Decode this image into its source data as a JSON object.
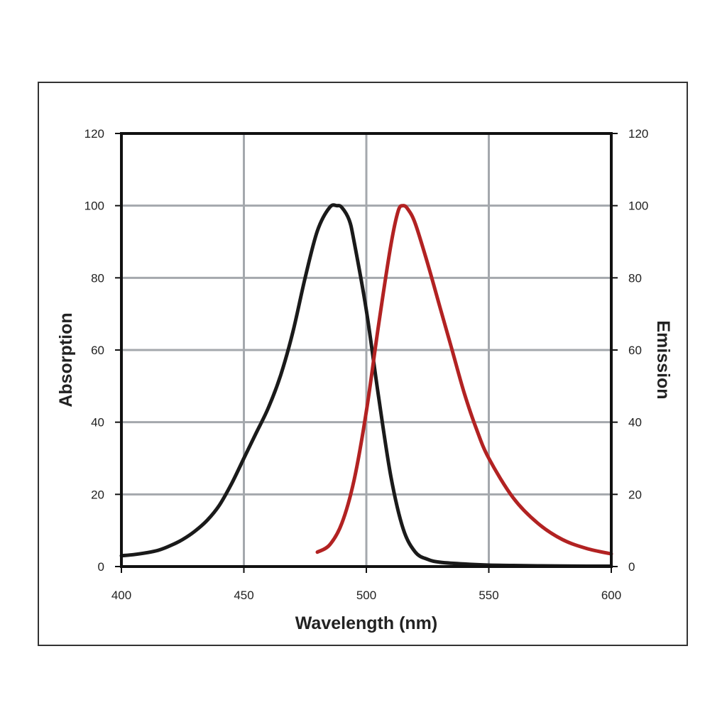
{
  "chart_data": {
    "type": "line",
    "xlabel": "Wavelength (nm)",
    "ylabel": "Absorption",
    "y2label": "Emission",
    "xlim": [
      400,
      600
    ],
    "ylim": [
      0,
      120
    ],
    "y2lim": [
      0,
      120
    ],
    "xticks": [
      400,
      450,
      500,
      550,
      600
    ],
    "yticks": [
      0,
      20,
      40,
      60,
      80,
      100,
      120
    ],
    "y2ticks": [
      0,
      20,
      40,
      60,
      80,
      100,
      120
    ],
    "grid": true,
    "series": [
      {
        "key": "absorption",
        "axis": "left",
        "color": "#1a1a1a",
        "x": [
          400,
          405,
          410,
          415,
          420,
          425,
          430,
          435,
          440,
          445,
          450,
          455,
          460,
          465,
          470,
          475,
          480,
          485,
          488,
          490,
          493,
          495,
          500,
          505,
          510,
          515,
          520,
          525,
          530,
          540,
          550,
          560,
          570,
          580,
          590,
          600
        ],
        "y": [
          3,
          3.3,
          3.8,
          4.5,
          5.8,
          7.5,
          9.8,
          12.8,
          17,
          23,
          30,
          37,
          44,
          53,
          65,
          80,
          93,
          99.5,
          100,
          99.5,
          96,
          90,
          71,
          47,
          25,
          10.5,
          4,
          2,
          1.2,
          0.7,
          0.4,
          0.3,
          0.2,
          0.15,
          0.1,
          0.1
        ]
      },
      {
        "key": "emission",
        "axis": "right",
        "color": "#b22222",
        "x": [
          480,
          485,
          490,
          495,
          500,
          505,
          510,
          513,
          515,
          517,
          520,
          525,
          530,
          535,
          540,
          545,
          550,
          560,
          570,
          580,
          590,
          600
        ],
        "y": [
          4,
          6,
          12,
          24,
          43,
          67,
          89,
          98.5,
          100,
          99,
          95,
          84,
          72,
          60,
          48,
          38,
          30,
          19,
          12,
          7.5,
          5,
          3.5
        ]
      }
    ]
  }
}
